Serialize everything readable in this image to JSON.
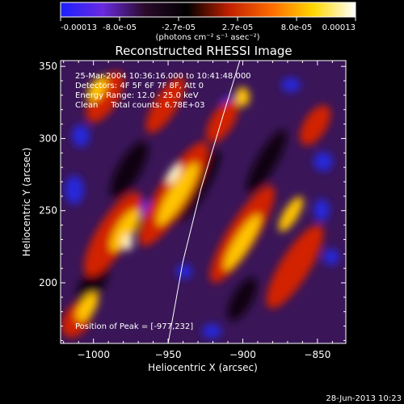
{
  "colorbar": {
    "tick_labels": [
      "-0.00013",
      "-8.0e-05",
      "-2.7e-05",
      "2.7e-05",
      "8.0e-05",
      "0.00013"
    ],
    "unit_label": "(photons cm⁻² s⁻¹ asec⁻²)",
    "range": [
      -0.00013,
      0.00013
    ],
    "colors": [
      "#1a20ff",
      "#6a2adf",
      "#2a0a2a",
      "#000000",
      "#c02000",
      "#ff6a00",
      "#ffd800",
      "#ffffff"
    ]
  },
  "chart_data": {
    "type": "heatmap",
    "title": "Reconstructed RHESSI Image",
    "xlabel": "Heliocentric X (arcsec)",
    "ylabel": "Heliocentric Y (arcsec)",
    "xlim": [
      -1022,
      -831
    ],
    "ylim": [
      158,
      354
    ],
    "x_ticks": [
      -1000,
      -950,
      -900,
      -850
    ],
    "y_ticks": [
      200,
      250,
      300,
      350
    ],
    "x_tick_labels": [
      "−1000",
      "−950",
      "−900",
      "−850"
    ],
    "y_tick_labels": [
      "200",
      "250",
      "300",
      "350"
    ],
    "limb_curve": [
      [
        -950,
        158
      ],
      [
        -940,
        215
      ],
      [
        -928,
        265
      ],
      [
        -915,
        310
      ],
      [
        -902,
        354
      ]
    ],
    "peak_position": [
      -977,
      232
    ],
    "annotations": [
      "25-Mar-2004 10:36:16.000 to 10:41:48.000",
      "Detectors: 4F 5F 6F 7F 8F, Att 0",
      "Energy Range: 12.0 - 25.0 keV",
      "Clean     Total counts: 6.78E+03"
    ],
    "peak_label": "Position of Peak = [-977,232]"
  },
  "footer_date": "28-Jun-2013 10:23"
}
